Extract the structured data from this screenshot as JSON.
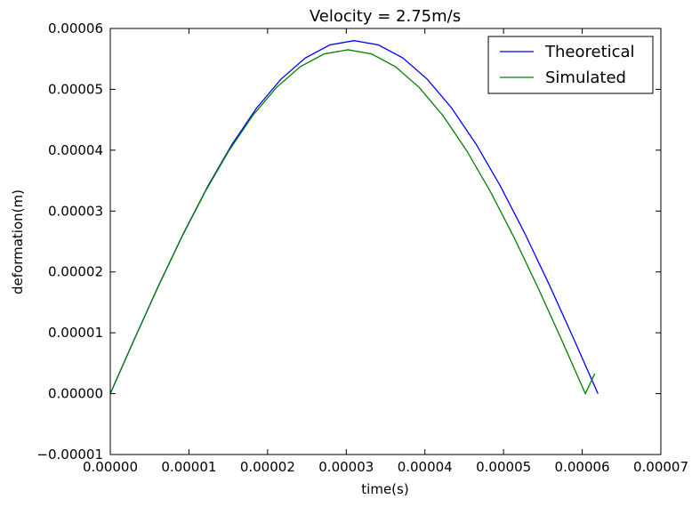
{
  "chart_data": {
    "type": "line",
    "title": "Velocity = 2.75m/s",
    "xlabel": "time(s)",
    "ylabel": "deformation(m)",
    "xlim": [
      0,
      7e-05
    ],
    "ylim": [
      -1e-05,
      6e-05
    ],
    "xticks": [
      0,
      1e-05,
      2e-05,
      3e-05,
      4e-05,
      5e-05,
      6e-05,
      7e-05
    ],
    "xtick_labels": [
      "0.00000",
      "0.00001",
      "0.00002",
      "0.00003",
      "0.00004",
      "0.00005",
      "0.00006",
      "0.00007"
    ],
    "yticks": [
      -1e-05,
      0,
      1e-05,
      2e-05,
      3e-05,
      4e-05,
      5e-05,
      6e-05
    ],
    "ytick_labels": [
      "−0.00001",
      "0.00000",
      "0.00001",
      "0.00002",
      "0.00003",
      "0.00004",
      "0.00005",
      "0.00006"
    ],
    "grid": false,
    "legend_position": "top-right",
    "series": [
      {
        "name": "Theoretical",
        "color": "#0000ff",
        "x": [
          0,
          3.1e-06,
          6.2e-06,
          9.3e-06,
          1.24e-05,
          1.55e-05,
          1.86e-05,
          2.17e-05,
          2.48e-05,
          2.79e-05,
          3.1e-05,
          3.41e-05,
          3.72e-05,
          4.03e-05,
          4.34e-05,
          4.65e-05,
          4.96e-05,
          5.27e-05,
          5.58e-05,
          5.89e-05,
          6.2e-05
        ],
        "y": [
          0,
          9.07e-06,
          1.792e-05,
          2.633e-05,
          3.409e-05,
          4.101e-05,
          4.692e-05,
          5.166e-05,
          5.516e-05,
          5.729e-05,
          5.8e-05,
          5.729e-05,
          5.516e-05,
          5.166e-05,
          4.692e-05,
          4.101e-05,
          3.409e-05,
          2.633e-05,
          1.792e-05,
          9.07e-06,
          0
        ]
      },
      {
        "name": "Simulated",
        "color": "#008000",
        "x": [
          0,
          3.02e-06,
          6.04e-06,
          9.06e-06,
          1.208e-05,
          1.51e-05,
          1.812e-05,
          2.114e-05,
          2.416e-05,
          2.718e-05,
          3.02e-05,
          3.322e-05,
          3.624e-05,
          3.926e-05,
          4.228e-05,
          4.53e-05,
          4.832e-05,
          5.134e-05,
          5.436e-05,
          5.738e-05,
          6.04e-05,
          6.16e-05
        ],
        "y": [
          0,
          8.84e-06,
          1.746e-05,
          2.565e-05,
          3.321e-05,
          3.995e-05,
          4.571e-05,
          5.033e-05,
          5.373e-05,
          5.581e-05,
          5.65e-05,
          5.581e-05,
          5.373e-05,
          5.033e-05,
          4.571e-05,
          3.995e-05,
          3.321e-05,
          2.565e-05,
          1.746e-05,
          8.84e-06,
          0,
          3.3e-06
        ]
      }
    ]
  }
}
